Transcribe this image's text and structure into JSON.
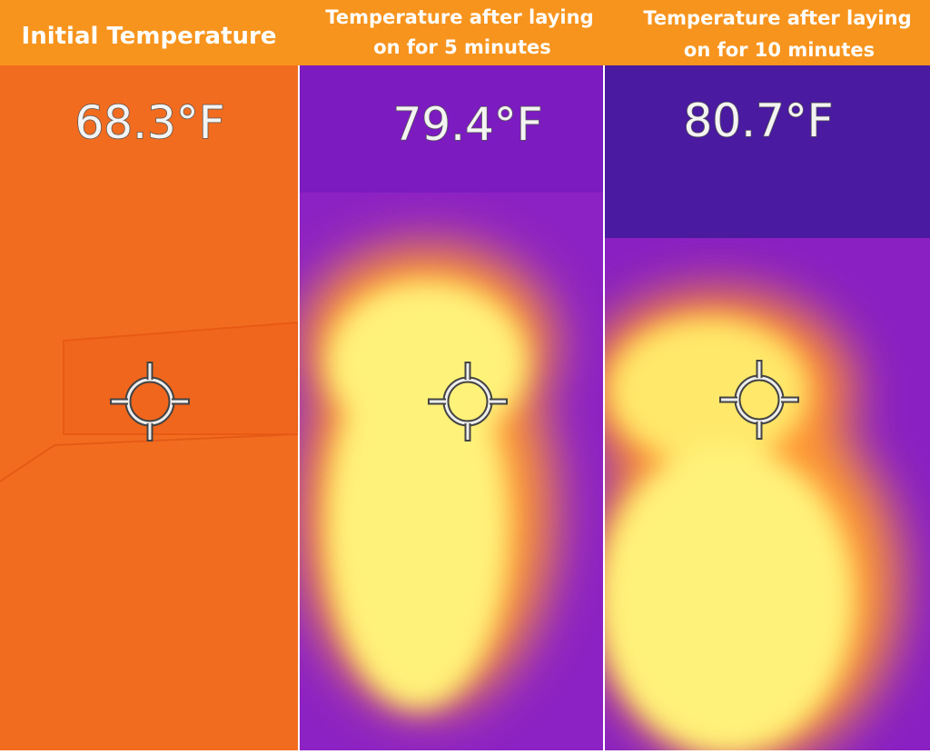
{
  "panels": [
    {
      "title_lines": [
        "Initial Temperature"
      ],
      "reading": "68.3°F"
    },
    {
      "title_lines": [
        "Temperature after laying",
        "on for 5 minutes"
      ],
      "reading": "79.4°F"
    },
    {
      "title_lines": [
        "Temperature after laying",
        "on for 10 minutes"
      ],
      "reading": "80.7°F"
    }
  ]
}
